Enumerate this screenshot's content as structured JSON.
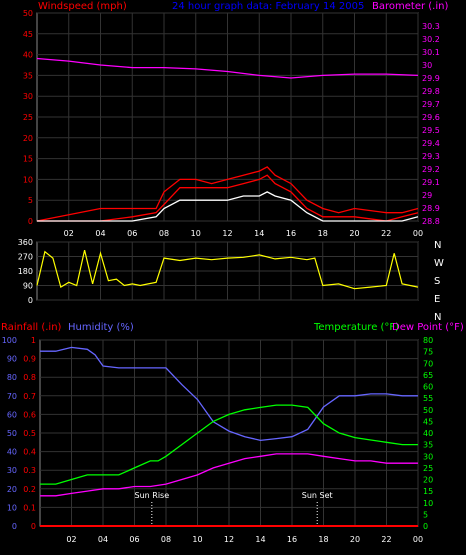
{
  "header": {
    "left": "Windspeed (mph)",
    "center": "24 hour graph data:  February 14 2005",
    "right": "Barometer (.in)"
  },
  "axis_labels": {
    "rainfall": "Rainfall (.in)",
    "humidity": "Humidity (%)",
    "temperature": "Temperature (°F)",
    "dewpoint": "Dew Point (°F)"
  },
  "compass": [
    "N",
    "W",
    "S",
    "E",
    "N"
  ],
  "annotations": {
    "sunrise": "Sun Rise",
    "sunset": "Sun Set"
  },
  "colors": {
    "windspeed": "#ff0000",
    "gust": "#ff0000",
    "windavg": "#ffffff",
    "barometer": "#ff00ff",
    "direction": "#ffff00",
    "humidity": "#6666ff",
    "temperature": "#00ff00",
    "dewpoint": "#ff00ff",
    "rain": "#ff0000",
    "title": "#0000ff",
    "grid": "#333333",
    "frame": "#888888"
  },
  "chart_data": [
    {
      "type": "line",
      "title": "24 hour graph data:  February 14 2005",
      "xlabel": "",
      "ylabel": "Windspeed (mph)",
      "y2label": "Barometer (.in)",
      "x_ticks": [
        "02",
        "04",
        "06",
        "08",
        "10",
        "12",
        "14",
        "16",
        "18",
        "20",
        "22",
        "00"
      ],
      "ylim": [
        0,
        50
      ],
      "y_ticks": [
        0,
        5,
        10,
        15,
        20,
        25,
        30,
        35,
        40,
        45,
        50
      ],
      "y2lim": [
        28.8,
        30.4
      ],
      "y2_ticks": [
        "28.8",
        "28.9",
        "29",
        "29.1",
        "29.2",
        "29.3",
        "29.4",
        "29.5",
        "29.6",
        "29.7",
        "29.8",
        "29.9",
        "30",
        "30.1",
        "30.2",
        "30.3"
      ],
      "grid": true,
      "series": [
        {
          "name": "Barometer (.in)",
          "axis": "right",
          "x": [
            0,
            2,
            4,
            6,
            8,
            10,
            12,
            14,
            16,
            18,
            20,
            22,
            24
          ],
          "values": [
            30.05,
            30.03,
            30.0,
            29.98,
            29.98,
            29.97,
            29.95,
            29.92,
            29.9,
            29.92,
            29.93,
            29.93,
            29.92
          ]
        },
        {
          "name": "Windspeed (mph)",
          "axis": "left",
          "x": [
            0,
            4,
            6,
            7.5,
            8,
            9,
            10,
            11,
            12,
            13,
            14,
            14.5,
            15,
            16,
            17,
            18,
            19,
            20,
            22,
            23,
            24
          ],
          "values": [
            0,
            0,
            1,
            2,
            4,
            8,
            8,
            8,
            8,
            9,
            10,
            11,
            9,
            7,
            3,
            1,
            1,
            1,
            0,
            1,
            2
          ]
        },
        {
          "name": "Gust",
          "axis": "left",
          "x": [
            0,
            4,
            6,
            7.5,
            8,
            9,
            10,
            11,
            12,
            13,
            14,
            14.5,
            15,
            16,
            17,
            18,
            19,
            20,
            22,
            23,
            24
          ],
          "values": [
            0,
            3,
            3,
            3,
            7,
            10,
            10,
            9,
            10,
            11,
            12,
            13,
            11,
            9,
            5,
            3,
            2,
            3,
            2,
            2,
            3
          ]
        },
        {
          "name": "Average",
          "axis": "left",
          "x": [
            0,
            4,
            6,
            7.5,
            8,
            9,
            10,
            11,
            12,
            13,
            14,
            14.5,
            15,
            16,
            17,
            18,
            19,
            20,
            22,
            23,
            24
          ],
          "values": [
            0,
            0,
            0,
            1,
            3,
            5,
            5,
            5,
            5,
            6,
            6,
            7,
            6,
            5,
            2,
            0,
            0,
            0,
            0,
            0,
            1
          ]
        }
      ]
    },
    {
      "type": "line",
      "ylabel": "Wind direction",
      "ylim": [
        0,
        360
      ],
      "y_ticks": [
        0,
        90,
        180,
        270,
        360
      ],
      "grid": true,
      "series": [
        {
          "name": "Direction",
          "x": [
            0,
            0.5,
            1,
            1.5,
            2,
            2.5,
            3,
            3.5,
            4,
            4.5,
            5,
            5.5,
            6,
            6.5,
            7,
            7.5,
            8,
            9,
            10,
            11,
            12,
            13,
            14,
            15,
            16,
            17,
            17.5,
            18,
            19,
            20,
            21,
            22,
            22.5,
            23,
            23.5,
            24
          ],
          "values": [
            90,
            300,
            260,
            80,
            110,
            90,
            310,
            100,
            290,
            120,
            130,
            90,
            100,
            90,
            100,
            110,
            260,
            245,
            260,
            250,
            260,
            265,
            280,
            255,
            265,
            250,
            260,
            90,
            100,
            70,
            80,
            90,
            290,
            100,
            90,
            80
          ]
        }
      ]
    },
    {
      "type": "line",
      "ylabel": "Humidity (%)",
      "y2label": "Temperature (°F)",
      "y3label": "Rainfall (.in)",
      "x_ticks": [
        "02",
        "04",
        "06",
        "08",
        "10",
        "12",
        "14",
        "16",
        "18",
        "20",
        "22",
        "00"
      ],
      "ylim": [
        0,
        100
      ],
      "y_ticks": [
        0,
        10,
        20,
        30,
        40,
        50,
        60,
        70,
        80,
        90,
        100
      ],
      "y2lim": [
        0,
        80
      ],
      "y2_ticks": [
        0,
        5,
        10,
        15,
        20,
        25,
        30,
        35,
        40,
        45,
        50,
        55,
        60,
        65,
        70,
        75,
        80
      ],
      "y3lim": [
        0,
        1
      ],
      "y3_ticks": [
        "0",
        "0.1",
        "0.2",
        "0.3",
        "0.4",
        "0.5",
        "0.6",
        "0.7",
        "0.8",
        "0.9",
        "1"
      ],
      "grid": true,
      "annotations": [
        {
          "label": "Sun Rise",
          "x": 7.1
        },
        {
          "label": "Sun Set",
          "x": 17.6
        }
      ],
      "series": [
        {
          "name": "Humidity (%)",
          "axis": "left",
          "x": [
            0,
            1,
            2,
            3,
            3.5,
            4,
            5,
            6,
            7,
            8,
            9,
            10,
            11,
            12,
            13,
            14,
            15,
            16,
            17,
            18,
            19,
            20,
            21,
            22,
            23,
            24
          ],
          "values": [
            94,
            94,
            96,
            95,
            92,
            86,
            85,
            85,
            85,
            85,
            76,
            68,
            56,
            51,
            48,
            46,
            47,
            48,
            52,
            64,
            70,
            70,
            71,
            71,
            70,
            70
          ]
        },
        {
          "name": "Temperature (°F)",
          "axis": "right",
          "x": [
            0,
            1,
            2,
            3,
            4,
            5,
            6,
            7,
            7.5,
            8,
            9,
            10,
            11,
            12,
            13,
            14,
            15,
            16,
            17,
            18,
            19,
            20,
            21,
            22,
            23,
            24
          ],
          "values": [
            18,
            18,
            20,
            22,
            22,
            22,
            25,
            28,
            28,
            30,
            35,
            40,
            45,
            48,
            50,
            51,
            52,
            52,
            51,
            44,
            40,
            38,
            37,
            36,
            35,
            35
          ]
        },
        {
          "name": "Dew Point (°F)",
          "axis": "right",
          "x": [
            0,
            1,
            2,
            3,
            4,
            5,
            6,
            7,
            8,
            9,
            10,
            11,
            12,
            13,
            14,
            15,
            16,
            17,
            18,
            19,
            20,
            21,
            22,
            23,
            24
          ],
          "values": [
            13,
            13,
            14,
            15,
            16,
            16,
            17,
            17,
            18,
            20,
            22,
            25,
            27,
            29,
            30,
            31,
            31,
            31,
            30,
            29,
            28,
            28,
            27,
            27,
            27
          ]
        },
        {
          "name": "Rainfall (.in)",
          "axis": "far-left",
          "x": [
            0,
            24
          ],
          "values": [
            0,
            0
          ]
        }
      ]
    }
  ]
}
